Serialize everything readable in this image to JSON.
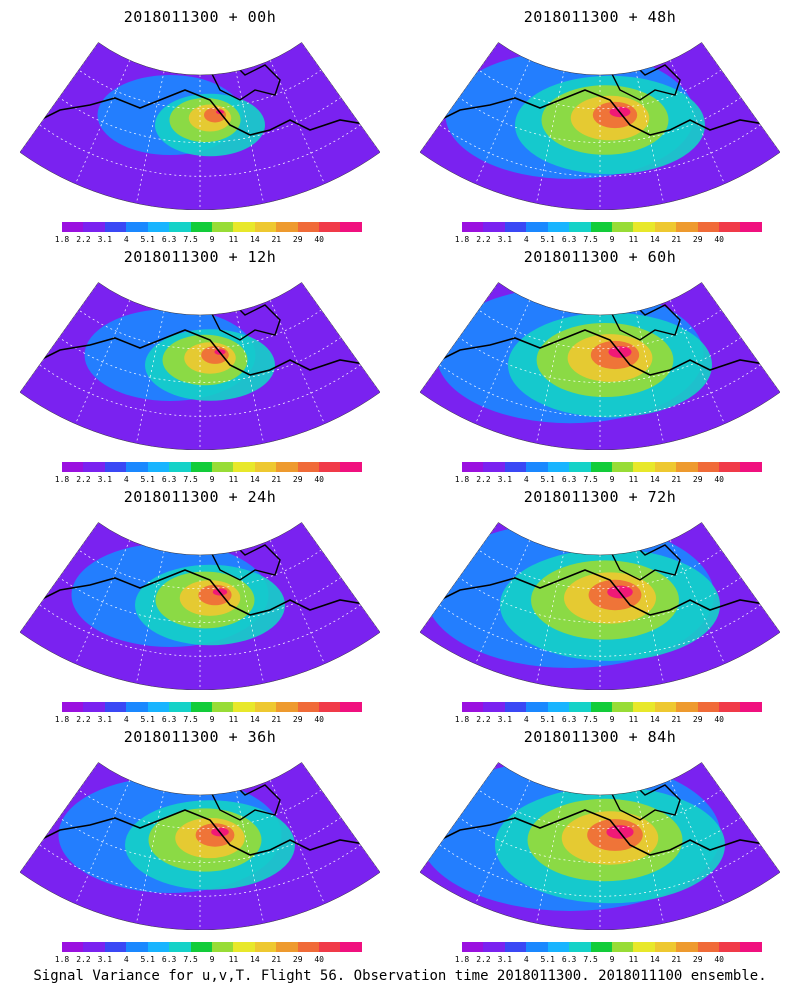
{
  "panels": [
    {
      "title": "2018011300 + 00h",
      "level": 0.25
    },
    {
      "title": "2018011300 + 48h",
      "level": 0.65
    },
    {
      "title": "2018011300 + 12h",
      "level": 0.35
    },
    {
      "title": "2018011300 + 60h",
      "level": 0.72
    },
    {
      "title": "2018011300 + 24h",
      "level": 0.45
    },
    {
      "title": "2018011300 + 72h",
      "level": 0.8
    },
    {
      "title": "2018011300 + 36h",
      "level": 0.55
    },
    {
      "title": "2018011300 + 84h",
      "level": 0.85
    }
  ],
  "colorbar": {
    "colors": [
      "#9a10e0",
      "#7a22f0",
      "#3a48f5",
      "#1a88ff",
      "#18b4ff",
      "#14d2c8",
      "#12cc3a",
      "#98dc36",
      "#e8e82a",
      "#eec830",
      "#ee9a2e",
      "#f06a38",
      "#f03a48",
      "#f0107e"
    ],
    "ticks": [
      "1.8",
      "2.2",
      "3.1",
      "4",
      "5.1",
      "6.3",
      "7.5",
      "9",
      "11",
      "14",
      "21",
      "29",
      "40"
    ]
  },
  "footer": "Signal Variance for u,v,T. Flight 56. Observation time 2018011300. 2018011100 ensemble."
}
